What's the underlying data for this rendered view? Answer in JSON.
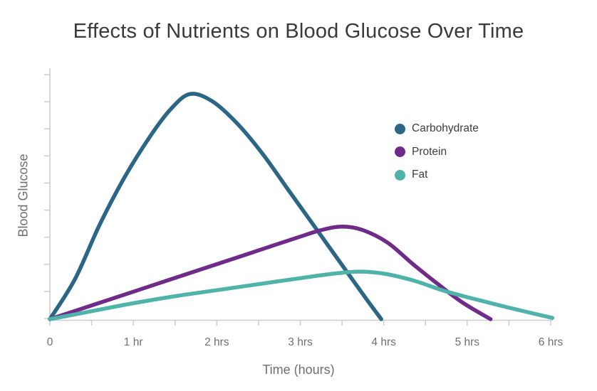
{
  "chart_data": {
    "type": "line",
    "title": "Effects of Nutrients on Blood Glucose Over Time",
    "xlabel": "Time (hours)",
    "ylabel": "Blood Glucose",
    "xlim": [
      0,
      6
    ],
    "ylim": [
      0,
      100
    ],
    "grid": false,
    "y_axis_tick_labels_visible": false,
    "y_tick_count": 10,
    "x_tick_step_minor": 0.5,
    "legend_position": "inside-top-right",
    "x_ticks": [
      {
        "value": 0,
        "label": "0"
      },
      {
        "value": 1,
        "label": "1 hr"
      },
      {
        "value": 2,
        "label": "2 hrs"
      },
      {
        "value": 3,
        "label": "3 hrs"
      },
      {
        "value": 4,
        "label": "4 hrs"
      },
      {
        "value": 5,
        "label": "5 hrs"
      },
      {
        "value": 6,
        "label": "6 hrs"
      }
    ],
    "series": [
      {
        "name": "Carbohydrate",
        "color": "#2b6687",
        "points": [
          [
            0,
            0
          ],
          [
            0.3,
            16
          ],
          [
            0.6,
            38
          ],
          [
            0.9,
            57
          ],
          [
            1.2,
            73
          ],
          [
            1.45,
            84
          ],
          [
            1.68,
            90
          ],
          [
            1.95,
            87
          ],
          [
            2.25,
            78
          ],
          [
            2.55,
            66
          ],
          [
            2.85,
            52
          ],
          [
            3.15,
            38
          ],
          [
            3.45,
            24
          ],
          [
            3.75,
            10
          ],
          [
            3.97,
            0
          ]
        ]
      },
      {
        "name": "Protein",
        "color": "#6e2b87",
        "points": [
          [
            0,
            0
          ],
          [
            0.5,
            5.5
          ],
          [
            1,
            11
          ],
          [
            1.5,
            16.5
          ],
          [
            2,
            22
          ],
          [
            2.5,
            27.5
          ],
          [
            3,
            33
          ],
          [
            3.25,
            35.6
          ],
          [
            3.5,
            37
          ],
          [
            3.75,
            35.6
          ],
          [
            4.05,
            30.5
          ],
          [
            4.35,
            22
          ],
          [
            4.65,
            14
          ],
          [
            4.95,
            6.5
          ],
          [
            5.28,
            0
          ]
        ]
      },
      {
        "name": "Fat",
        "color": "#4fb3a9",
        "points": [
          [
            0,
            0
          ],
          [
            0.5,
            3.2
          ],
          [
            1,
            6.4
          ],
          [
            1.5,
            9.2
          ],
          [
            2,
            11.6
          ],
          [
            2.5,
            14
          ],
          [
            3,
            16.4
          ],
          [
            3.4,
            18.2
          ],
          [
            3.7,
            19
          ],
          [
            4,
            18.2
          ],
          [
            4.35,
            15.5
          ],
          [
            4.7,
            11.6
          ],
          [
            5,
            8.8
          ],
          [
            5.5,
            4.6
          ],
          [
            6.02,
            0.5
          ]
        ]
      }
    ],
    "colors": {
      "axis": "#cccccc",
      "tick_text": "#6f6f6f",
      "axis_title_text": "#6e6e6e",
      "title_text": "#3a3a3a",
      "legend_text": "#3d3d3d",
      "background": "#ffffff"
    }
  }
}
